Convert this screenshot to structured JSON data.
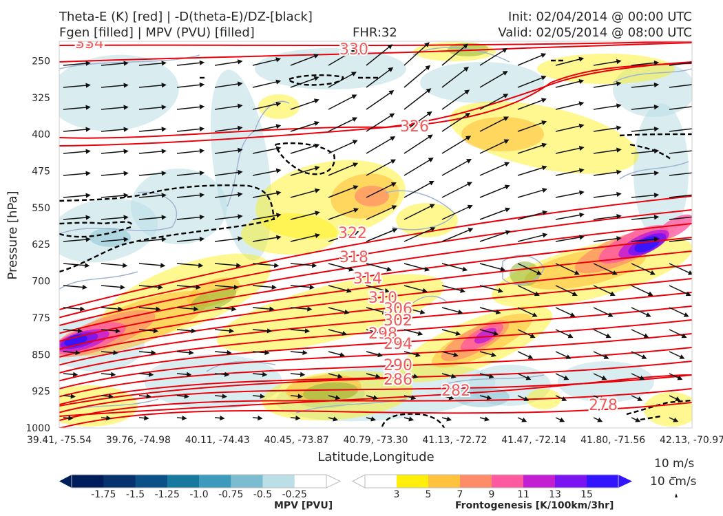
{
  "header": {
    "title_line1": "Theta-E (K) [red] | -D(theta-E)/DZ-[black]",
    "title_line2": "Fgen [filled] | MPV (PVU) [filled]",
    "fhr": "FHR:32",
    "init": "Init: 02/04/2014 @ 00:00 UTC",
    "valid": "Valid: 02/05/2014 @ 08:00 UTC"
  },
  "chart_data": {
    "type": "cross-section",
    "ylabel": "Pressure [hPa]",
    "xlabel": "Latitude,Longitude",
    "y_ticks": [
      250,
      325,
      400,
      475,
      550,
      625,
      700,
      775,
      850,
      925,
      1000
    ],
    "ylim": [
      1000,
      210
    ],
    "x_ticks": [
      "39.41, -75.54",
      "39.76, -74.98",
      "40.11, -74.43",
      "40.45, -73.87",
      "40.79, -73.30",
      "41.13, -72.72",
      "41.47, -72.14",
      "41.80, -71.56",
      "42.13, -70.97"
    ],
    "theta_e_contours": {
      "color": "#e8000b",
      "label_color": "#f05a5a",
      "labels": [
        "334",
        "330",
        "326",
        "322",
        "318",
        "314",
        "310",
        "306",
        "302",
        "298",
        "294",
        "290",
        "286",
        "282",
        "278"
      ]
    },
    "mpv_colorbar": {
      "label": "MPV [PVU]",
      "ticks": [
        "-1.75",
        "-1.5",
        "-1.25",
        "-1.0",
        "-0.75",
        "-0.5",
        "-0.25"
      ],
      "colors": [
        "#001d5b",
        "#06336e",
        "#0b5187",
        "#18799f",
        "#3c9bbd",
        "#7cbcd1",
        "#badfe6",
        "#ffffff"
      ]
    },
    "fgen_colorbar": {
      "label": "Frontogenesis [K/100km/3hr]",
      "ticks": [
        "3",
        "5",
        "7",
        "9",
        "11",
        "13",
        "15"
      ],
      "colors": [
        "#ffffff",
        "#ffef0a",
        "#ffc23c",
        "#ff8c69",
        "#ff5aa0",
        "#c21ed2",
        "#7a14f0",
        "#3214ff"
      ]
    },
    "wind_reference": {
      "horizontal": "10 m/s",
      "vertical": "10 cm/s"
    }
  }
}
